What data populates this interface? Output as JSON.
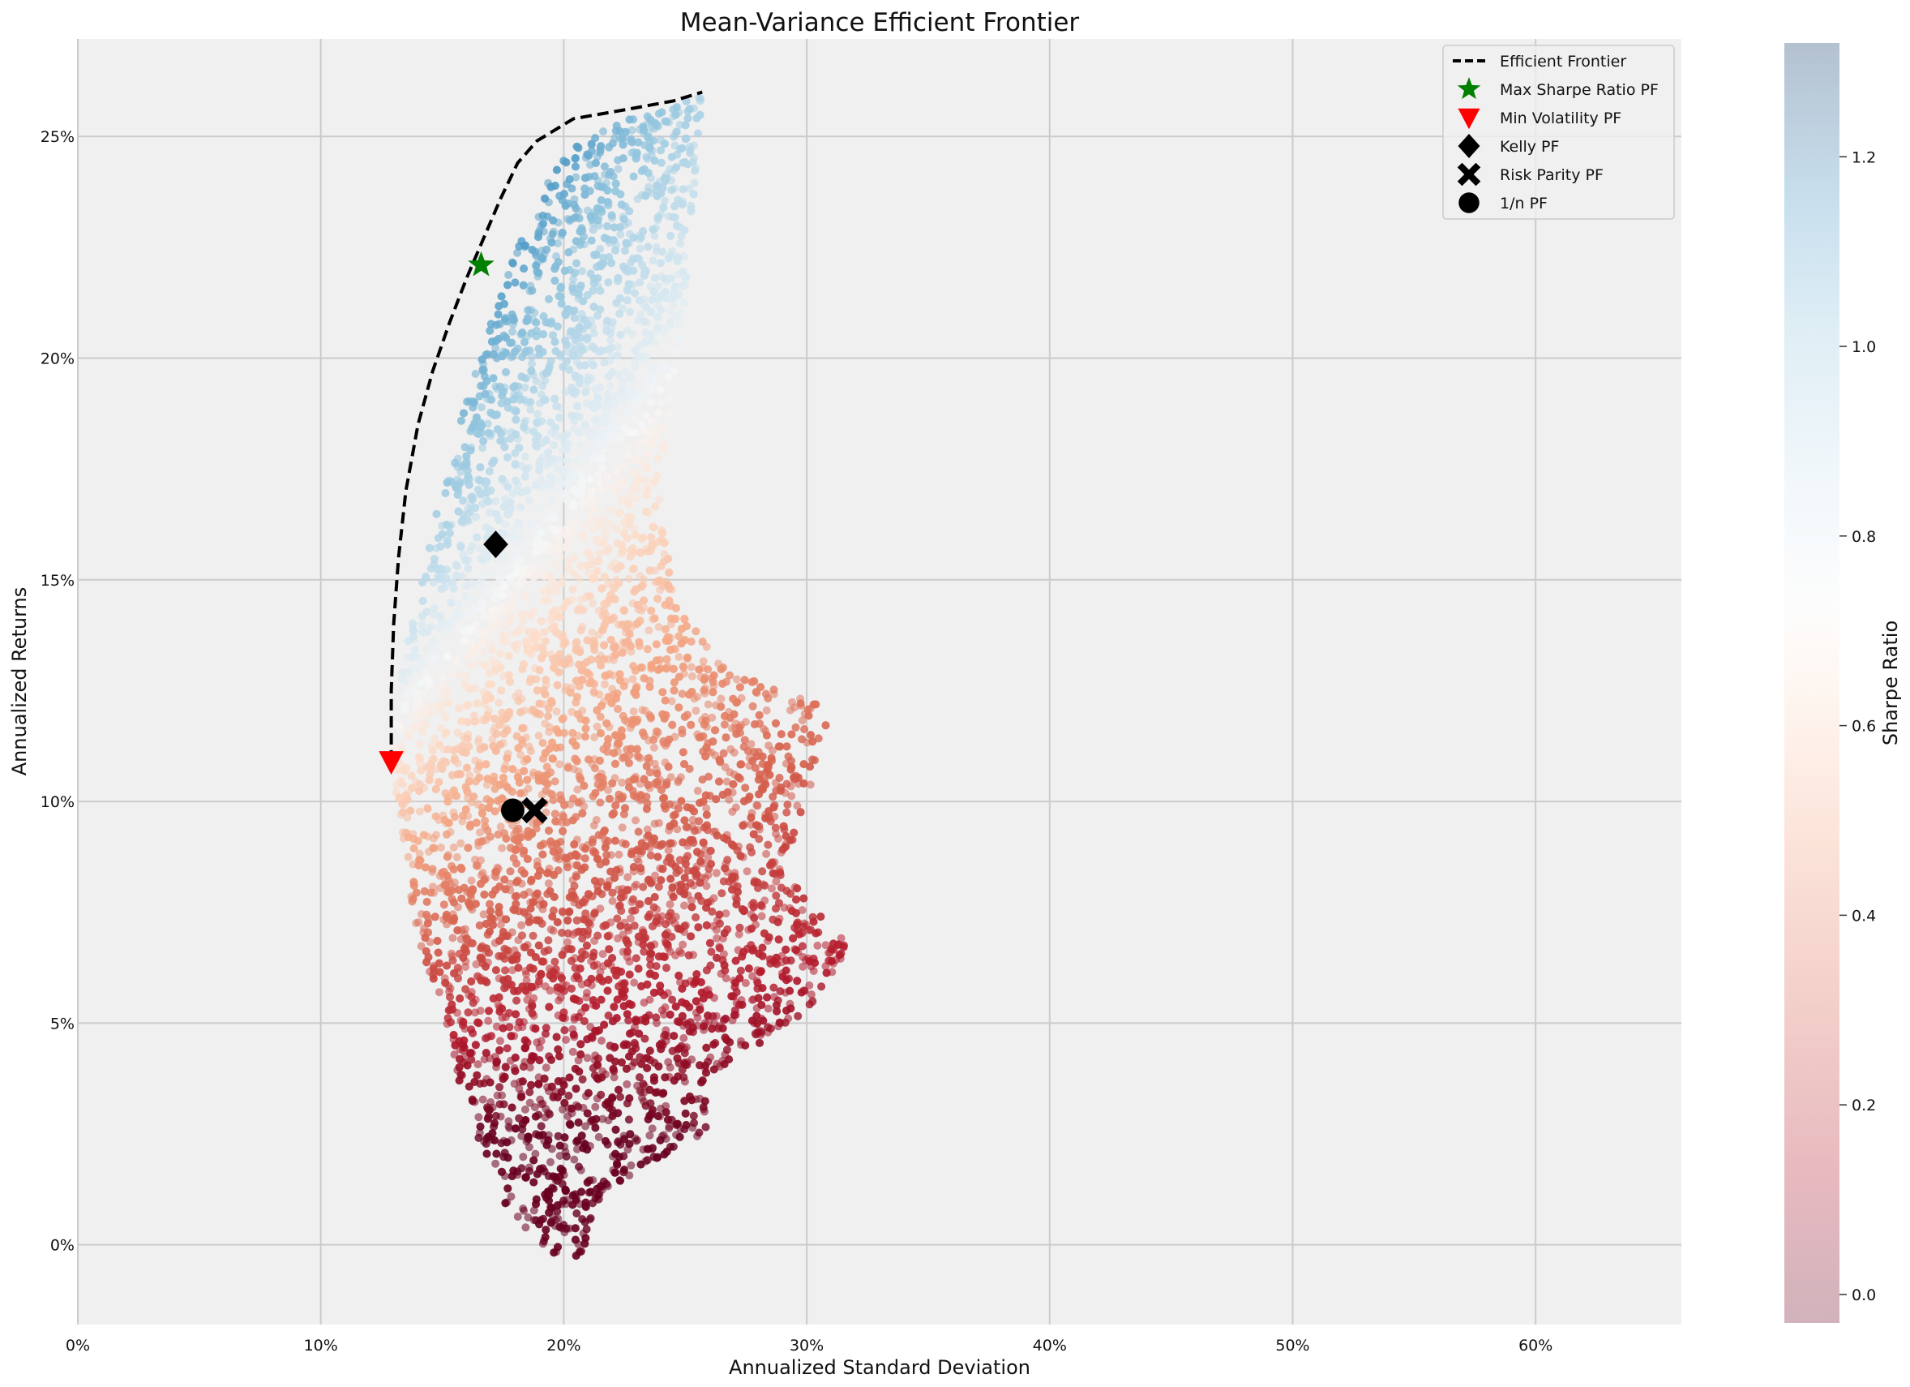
{
  "chart_data": {
    "type": "scatter",
    "title": "Mean-Variance Efficient Frontier",
    "xlabel": "Annualized Standard Deviation",
    "ylabel": "Annualized Returns",
    "xlim": [
      0,
      0.66
    ],
    "ylim": [
      -0.018,
      0.272
    ],
    "x_ticks": [
      0,
      0.1,
      0.2,
      0.3,
      0.4,
      0.5,
      0.6
    ],
    "x_tick_labels": [
      "0%",
      "10%",
      "20%",
      "30%",
      "40%",
      "50%",
      "60%"
    ],
    "y_ticks": [
      0,
      0.05,
      0.1,
      0.15,
      0.2,
      0.25
    ],
    "y_tick_labels": [
      "0%",
      "5%",
      "10%",
      "15%",
      "20%",
      "25%"
    ],
    "grid": true,
    "legend_position": "top-right",
    "colorbar": {
      "label": "Sharpe Ratio",
      "colormap": "RdBu",
      "range": [
        -0.03,
        1.32
      ],
      "ticks": [
        0.0,
        0.2,
        0.4,
        0.6,
        0.8,
        1.0,
        1.2
      ],
      "tick_labels": [
        "0.0",
        "0.2",
        "0.4",
        "0.6",
        "0.8",
        "1.0",
        "1.2"
      ]
    },
    "efficient_frontier": {
      "name": "Efficient Frontier",
      "x": [
        0.129,
        0.129,
        0.13,
        0.132,
        0.135,
        0.14,
        0.146,
        0.153,
        0.16,
        0.167,
        0.174,
        0.181,
        0.189,
        0.204,
        0.225,
        0.245,
        0.257
      ],
      "y": [
        0.109,
        0.125,
        0.14,
        0.155,
        0.17,
        0.185,
        0.197,
        0.208,
        0.218,
        0.227,
        0.236,
        0.244,
        0.249,
        0.254,
        0.256,
        0.258,
        0.26
      ]
    },
    "cloud_outline": {
      "x": [
        0.129,
        0.132,
        0.137,
        0.143,
        0.15,
        0.157,
        0.164,
        0.171,
        0.179,
        0.187,
        0.196,
        0.205,
        0.218,
        0.232,
        0.246,
        0.257,
        0.253,
        0.247,
        0.24,
        0.245,
        0.268,
        0.29,
        0.31,
        0.3,
        0.29,
        0.32,
        0.305,
        0.28,
        0.258,
        0.26,
        0.245,
        0.232,
        0.21,
        0.207,
        0.19,
        0.175,
        0.16,
        0.15,
        0.14,
        0.135,
        0.131
      ],
      "y": [
        0.11,
        0.125,
        0.14,
        0.155,
        0.17,
        0.185,
        0.198,
        0.21,
        0.222,
        0.233,
        0.242,
        0.248,
        0.252,
        0.255,
        0.257,
        0.26,
        0.23,
        0.2,
        0.17,
        0.145,
        0.13,
        0.125,
        0.121,
        0.1,
        0.085,
        0.066,
        0.055,
        0.045,
        0.038,
        0.026,
        0.021,
        0.018,
        0.005,
        -0.006,
        0.0,
        0.01,
        0.03,
        0.05,
        0.07,
        0.085,
        0.1
      ]
    },
    "special_portfolios": [
      {
        "name": "Max Sharpe Ratio PF",
        "marker": "star",
        "color": "#008000",
        "x": 0.166,
        "y": 0.221
      },
      {
        "name": "Min Volatility PF",
        "marker": "triangle-down",
        "color": "#ff0000",
        "x": 0.129,
        "y": 0.109
      },
      {
        "name": "Kelly PF",
        "marker": "diamond",
        "color": "#000000",
        "x": 0.172,
        "y": 0.158
      },
      {
        "name": "Risk Parity PF",
        "marker": "x",
        "color": "#000000",
        "x": 0.188,
        "y": 0.098
      },
      {
        "name": "1/n PF",
        "marker": "circle",
        "color": "#000000",
        "x": 0.179,
        "y": 0.098
      }
    ]
  }
}
